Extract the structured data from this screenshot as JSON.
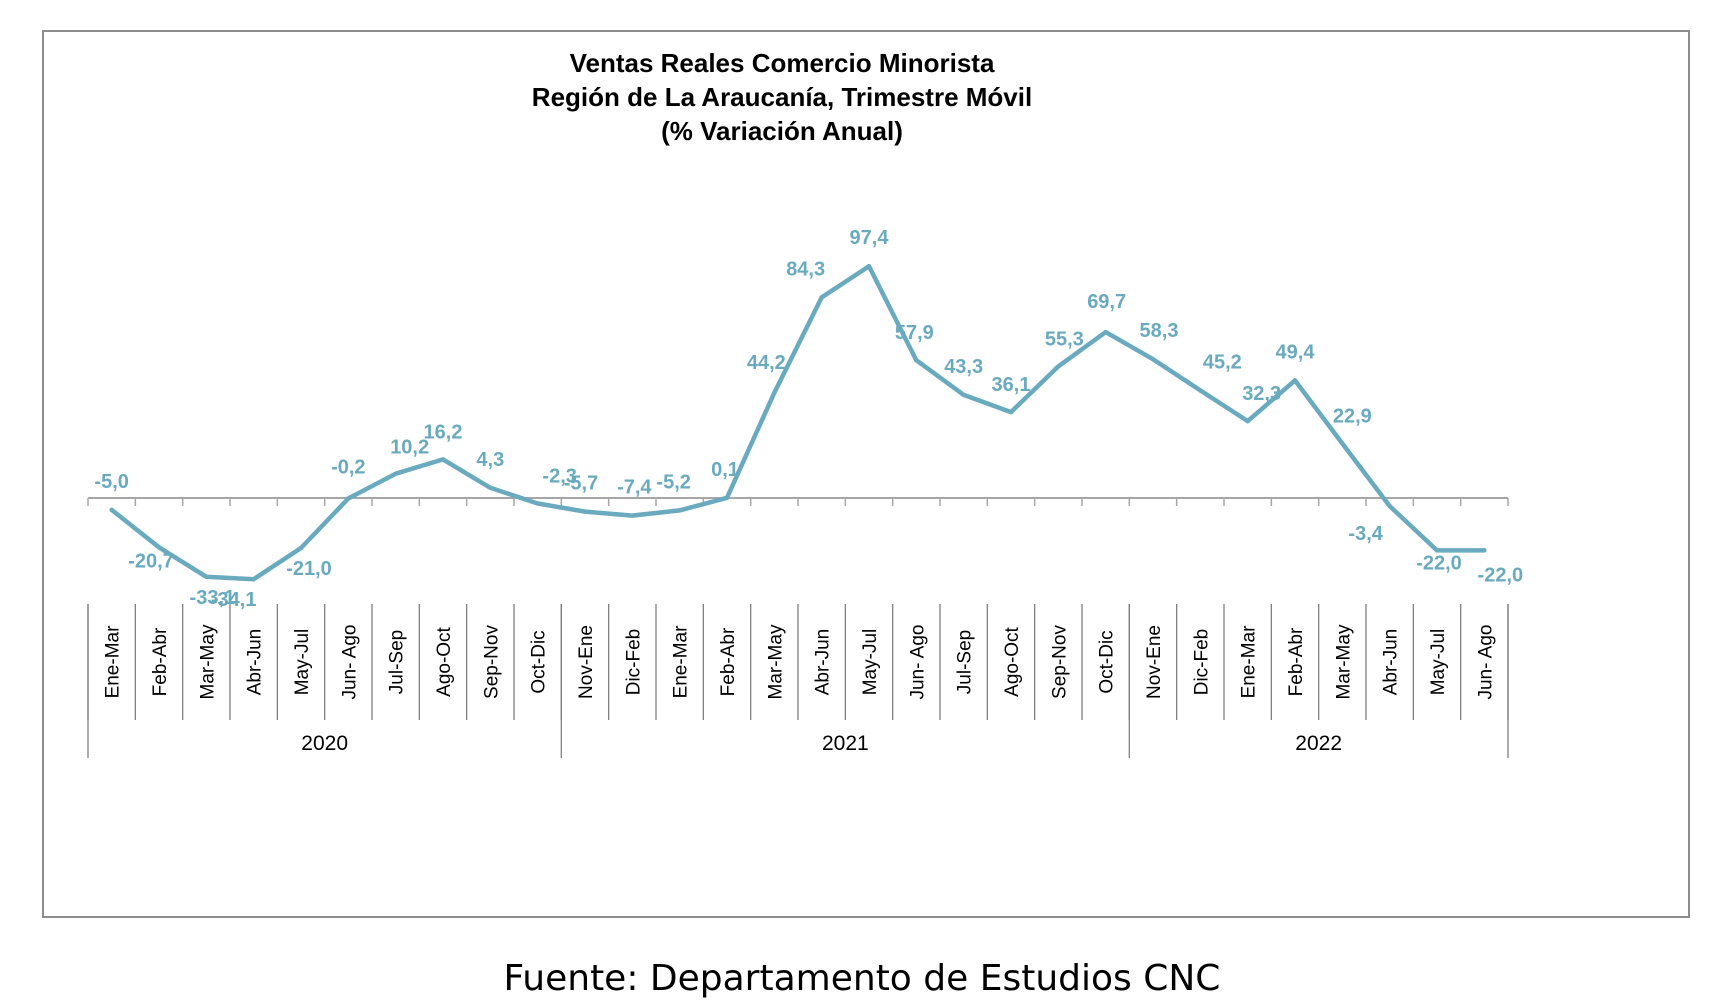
{
  "chart_data": {
    "type": "line",
    "title_lines": [
      "Ventas Reales Comercio Minorista",
      "Región de La Araucanía, Trimestre Móvil",
      "(% Variación Anual)"
    ],
    "categories": [
      "Ene-Mar",
      "Feb-Abr",
      "Mar-May",
      "Abr-Jun",
      "May-Jul",
      "Jun- Ago",
      "Jul-Sep",
      "Ago-Oct",
      "Sep-Nov",
      "Oct-Dic",
      "Nov-Ene",
      "Dic-Feb",
      "Ene-Mar",
      "Feb-Abr",
      "Mar-May",
      "Abr-Jun",
      "May-Jul",
      "Jun- Ago",
      "Jul-Sep",
      "Ago-Oct",
      "Sep-Nov",
      "Oct-Dic",
      "Nov-Ene",
      "Dic-Feb",
      "Ene-Mar",
      "Feb-Abr",
      "Mar-May",
      "Abr-Jun",
      "May-Jul",
      "Jun- Ago"
    ],
    "series": [
      {
        "values": [
          -5.0,
          -20.7,
          -33.1,
          -34.1,
          -21.0,
          -0.2,
          10.2,
          16.2,
          4.3,
          -2.3,
          -5.7,
          -7.4,
          -5.2,
          0.1,
          44.2,
          84.3,
          97.4,
          57.9,
          43.3,
          36.1,
          55.3,
          69.7,
          58.3,
          45.2,
          32.3,
          49.4,
          22.9,
          -3.4,
          -22.0,
          -22.0
        ],
        "labels": [
          "-5,0",
          "-20,7",
          "-33,1",
          "-34,1",
          "-21,0",
          "-0,2",
          "10,2",
          "16,2",
          "4,3",
          "-2,3",
          "-5,7",
          "-7,4",
          "-5,2",
          "0,1",
          "44,2",
          "84,3",
          "97,4",
          "57,9",
          "43,3",
          "36,1",
          "55,3",
          "69,7",
          "58,3",
          "45,2",
          "32,3",
          "49,4",
          "22,9",
          "-3,4",
          "-22,0",
          "-22,0"
        ],
        "color": "#6aaabf"
      }
    ],
    "year_groups": [
      {
        "label": "2020",
        "start": 0,
        "count": 10
      },
      {
        "label": "2021",
        "start": 10,
        "count": 12
      },
      {
        "label": "2022",
        "start": 22,
        "count": 8
      }
    ],
    "ylim": [
      -35,
      100
    ],
    "grid": false,
    "legend": "none"
  },
  "source_note": "Fuente: Departamento de Estudios CNC"
}
